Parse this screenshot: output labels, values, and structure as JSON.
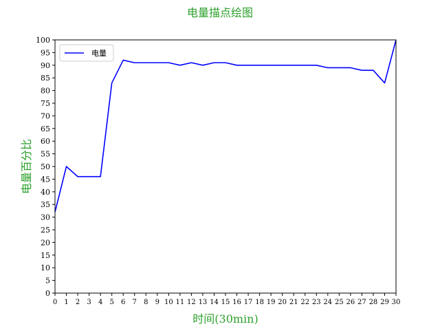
{
  "chart_data": {
    "type": "line",
    "title": "电量描点绘图",
    "xlabel": "时间(30min)",
    "ylabel": "电量百分比",
    "ylim": [
      0,
      100
    ],
    "yticks": [
      0,
      5,
      10,
      15,
      20,
      25,
      30,
      35,
      40,
      45,
      50,
      55,
      60,
      65,
      70,
      75,
      80,
      85,
      90,
      95,
      100
    ],
    "x": [
      0,
      1,
      2,
      3,
      4,
      5,
      6,
      7,
      8,
      9,
      10,
      11,
      12,
      13,
      14,
      15,
      16,
      17,
      18,
      19,
      20,
      21,
      22,
      23,
      24,
      25,
      26,
      27,
      28,
      29,
      30
    ],
    "xlim": [
      0,
      30
    ],
    "series": [
      {
        "name": "电量",
        "color": "#0000ff",
        "values": [
          32,
          50,
          46,
          46,
          46,
          83,
          92,
          91,
          91,
          91,
          91,
          90,
          91,
          90,
          91,
          91,
          90,
          90,
          90,
          90,
          90,
          90,
          90,
          90,
          89,
          89,
          89,
          88,
          88,
          83,
          100
        ]
      }
    ],
    "legend": "upper-left",
    "grid": false,
    "title_color": "#2ca02c",
    "label_color": "#2ca02c"
  }
}
